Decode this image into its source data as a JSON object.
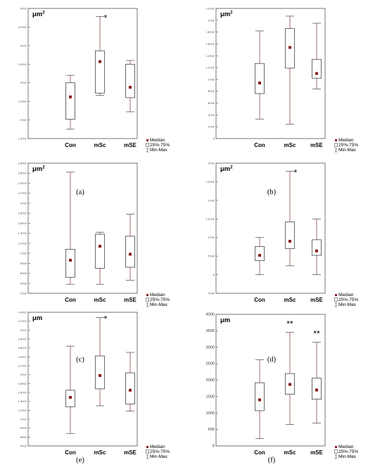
{
  "legend": {
    "median": "Median",
    "iqr": "25%-75%",
    "range": "Min-Max"
  },
  "colors": {
    "median_marker": "#8b1a1a",
    "box_stroke": "#444444",
    "whisker": "#8b2a2a",
    "frame": "#555555"
  },
  "chart_data": [
    {
      "type": "boxplot",
      "caption": "(a)",
      "unit": "μm",
      "unit_sup": "2",
      "categories": [
        "Con",
        "mSc",
        "mSE"
      ],
      "ylim": [
        150000.0,
        500000.0
      ],
      "yticks": [
        150000.0,
        200000.0,
        250000.0,
        300000.0,
        350000.0,
        400000.0,
        450000.0,
        500000.0
      ],
      "ytick_labels": [
        "1.5*10⁵",
        "2*10⁵",
        "2.5*10⁵",
        "3*10⁵",
        "3.5*10⁵",
        "4*10⁵",
        "4.5*10⁵",
        "5*10⁵"
      ],
      "series": [
        {
          "category": "Con",
          "min": 175000.0,
          "q1": 202000.0,
          "median": 262000.0,
          "q3": 300000.0,
          "max": 320000.0,
          "annotation": ""
        },
        {
          "category": "mSc",
          "min": 266000.0,
          "q1": 272000.0,
          "median": 357000.0,
          "q3": 386000.0,
          "max": 478000.0,
          "annotation": "*"
        },
        {
          "category": "mSE",
          "min": 222000.0,
          "q1": 260000.0,
          "median": 288000.0,
          "q3": 350000.0,
          "max": 360000.0,
          "annotation": ""
        }
      ]
    },
    {
      "type": "boxplot",
      "caption": "(b)",
      "unit": "μm",
      "unit_sup": "2",
      "categories": [
        "Con",
        "mSc",
        "mSE"
      ],
      "ylim": [
        0,
        220000.0
      ],
      "yticks": [
        0,
        20000.0,
        40000.0,
        60000.0,
        80000.0,
        100000.0,
        120000.0,
        140000.0,
        160000.0,
        180000.0,
        200000.0,
        220000.0
      ],
      "ytick_labels": [
        "0",
        "2*10⁴",
        "4*10⁴",
        "6*10⁴",
        "8*10⁴",
        "1*10⁵",
        "1.2*10⁵",
        "1.4*10⁵",
        "1.6*10⁵",
        "1.8*10⁵",
        "2*10⁵",
        "2.2*10⁵"
      ],
      "series": [
        {
          "category": "Con",
          "min": 33000.0,
          "q1": 76000.0,
          "median": 94000.0,
          "q3": 127000.0,
          "max": 182000.0,
          "annotation": ""
        },
        {
          "category": "mSc",
          "min": 24000.0,
          "q1": 119000.0,
          "median": 154000.0,
          "q3": 186000.0,
          "max": 207000.0,
          "annotation": ""
        },
        {
          "category": "mSE",
          "min": 84000.0,
          "q1": 102000.0,
          "median": 110000.0,
          "q3": 134000.0,
          "max": 195000.0,
          "annotation": ""
        }
      ]
    },
    {
      "type": "boxplot",
      "caption": "(c)",
      "unit": "μm",
      "unit_sup": "2",
      "categories": [
        "Con",
        "mSc",
        "mSE"
      ],
      "ylim": [
        20000.0,
        280000.0
      ],
      "yticks": [
        20000.0,
        40000.0,
        60000.0,
        80000.0,
        100000.0,
        120000.0,
        140000.0,
        160000.0,
        180000.0,
        200000.0,
        220000.0,
        240000.0,
        260000.0,
        280000.0
      ],
      "ytick_labels": [
        "2*10⁴",
        "4*10⁴",
        "6*10⁴",
        "8*10⁴",
        "1*10⁵",
        "1.2*10⁵",
        "1.4*10⁵",
        "1.6*10⁵",
        "1.8*10⁵",
        "2*10⁵",
        "2.2*10⁵",
        "2.4*10⁵",
        "2.6*10⁵",
        "2.8*10⁵"
      ],
      "series": [
        {
          "category": "Con",
          "min": 38000.0,
          "q1": 52000.0,
          "median": 86000.0,
          "q3": 108000.0,
          "max": 262000.0,
          "annotation": ""
        },
        {
          "category": "mSc",
          "min": 38000.0,
          "q1": 70000.0,
          "median": 114000.0,
          "q3": 138000.0,
          "max": 142000.0,
          "annotation": ""
        },
        {
          "category": "mSE",
          "min": 46000.0,
          "q1": 72000.0,
          "median": 98000.0,
          "q3": 134000.0,
          "max": 178000.0,
          "annotation": ""
        }
      ]
    },
    {
      "type": "boxplot",
      "caption": "(d)",
      "unit": "μm",
      "unit_sup": "2",
      "categories": [
        "Con",
        "mSc",
        "mSE"
      ],
      "ylim": [
        -50000.0,
        300000.0
      ],
      "yticks": [
        -50000.0,
        0,
        50000.0,
        100000.0,
        150000.0,
        200000.0,
        250000.0,
        300000.0
      ],
      "ytick_labels": [
        "-5*10⁴",
        "0",
        "5*10⁴",
        "1*10⁵",
        "1.5*10⁵",
        "2*10⁵",
        "2.5*10⁵",
        "3*10⁵"
      ],
      "series": [
        {
          "category": "Con",
          "min": 0,
          "q1": 38000.0,
          "median": 52000.0,
          "q3": 76000.0,
          "max": 100000.0,
          "annotation": ""
        },
        {
          "category": "mSc",
          "min": 24000.0,
          "q1": 70000.0,
          "median": 90000.0,
          "q3": 142000.0,
          "max": 278000.0,
          "annotation": "*"
        },
        {
          "category": "mSE",
          "min": 0,
          "q1": 52000.0,
          "median": 64000.0,
          "q3": 94000.0,
          "max": 150000.0,
          "annotation": ""
        }
      ]
    },
    {
      "type": "boxplot",
      "caption": "(e)",
      "unit": "μm",
      "unit_sup": "",
      "categories": [
        "Con",
        "mSc",
        "mSE"
      ],
      "ylim": [
        4000000.0,
        34000000.0
      ],
      "yticks": [
        4000000.0,
        6000000.0,
        8000000.0,
        10000000.0,
        12000000.0,
        14000000.0,
        16000000.0,
        18000000.0,
        20000000.0,
        22000000.0,
        24000000.0,
        26000000.0,
        28000000.0,
        30000000.0,
        32000000.0,
        34000000.0
      ],
      "ytick_labels": [
        "4*10⁶",
        "6*10⁶",
        "8*10⁶",
        "1*10⁷",
        "1.2*10⁷",
        "1.4*10⁷",
        "1.6*10⁷",
        "1.8*10⁷",
        "2*10⁷",
        "2.2*10⁷",
        "2.4*10⁷",
        "2.6*10⁷",
        "2.8*10⁷",
        "3*10⁷",
        "3.2*10⁷",
        "3.4*10⁷"
      ],
      "series": [
        {
          "category": "Con",
          "min": 6800000.0,
          "q1": 12800000.0,
          "median": 14900000.0,
          "q3": 16500000.0,
          "max": 26400000.0,
          "annotation": ""
        },
        {
          "category": "mSc",
          "min": 13000000.0,
          "q1": 16800000.0,
          "median": 19800000.0,
          "q3": 24200000.0,
          "max": 32800000.0,
          "annotation": "*"
        },
        {
          "category": "mSE",
          "min": 11800000.0,
          "q1": 13400000.0,
          "median": 16500000.0,
          "q3": 20400000.0,
          "max": 25000000.0,
          "annotation": ""
        }
      ]
    },
    {
      "type": "boxplot",
      "caption": "(f)",
      "unit": "μm",
      "unit_sup": "",
      "categories": [
        "Con",
        "mSc",
        "mSE"
      ],
      "ylim": [
        0,
        4000
      ],
      "yticks": [
        0,
        500,
        1000,
        1500,
        2000,
        2500,
        3000,
        3500,
        4000
      ],
      "ytick_labels": [
        "0",
        "500",
        "1000",
        "1500",
        "2000",
        "2500",
        "3000",
        "3500",
        "4000"
      ],
      "series": [
        {
          "category": "Con",
          "min": 220,
          "q1": 1070,
          "median": 1400,
          "q3": 1920,
          "max": 2620,
          "annotation": ""
        },
        {
          "category": "mSc",
          "min": 650,
          "q1": 1570,
          "median": 1870,
          "q3": 2200,
          "max": 3450,
          "annotation": "**"
        },
        {
          "category": "mSE",
          "min": 690,
          "q1": 1420,
          "median": 1700,
          "q3": 2060,
          "max": 3150,
          "annotation": "**"
        }
      ]
    }
  ]
}
